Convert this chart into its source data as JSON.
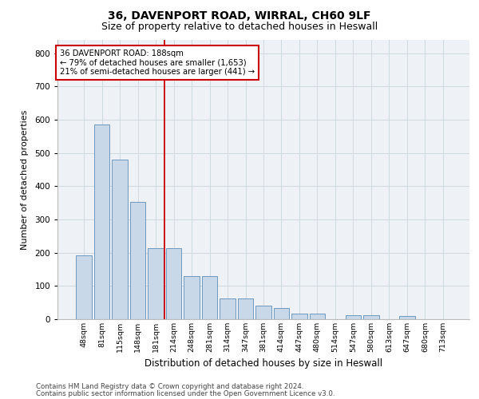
{
  "title1": "36, DAVENPORT ROAD, WIRRAL, CH60 9LF",
  "title2": "Size of property relative to detached houses in Heswall",
  "xlabel": "Distribution of detached houses by size in Heswall",
  "ylabel": "Number of detached properties",
  "categories": [
    "48sqm",
    "81sqm",
    "115sqm",
    "148sqm",
    "181sqm",
    "214sqm",
    "248sqm",
    "281sqm",
    "314sqm",
    "347sqm",
    "381sqm",
    "414sqm",
    "447sqm",
    "480sqm",
    "514sqm",
    "547sqm",
    "580sqm",
    "613sqm",
    "647sqm",
    "680sqm",
    "713sqm"
  ],
  "values": [
    192,
    585,
    480,
    352,
    214,
    214,
    130,
    130,
    62,
    62,
    40,
    33,
    18,
    18,
    0,
    12,
    12,
    0,
    9,
    0,
    0
  ],
  "bar_color": "#c8d8e8",
  "bar_edge_color": "#5b8db8",
  "annotation_text_line1": "36 DAVENPORT ROAD: 188sqm",
  "annotation_text_line2": "← 79% of detached houses are smaller (1,653)",
  "annotation_text_line3": "21% of semi-detached houses are larger (441) →",
  "annotation_box_facecolor": "#ffffff",
  "annotation_box_edgecolor": "#cc0000",
  "vline_color": "#cc0000",
  "vline_x": 4.5,
  "ylim": [
    0,
    840
  ],
  "yticks": [
    0,
    100,
    200,
    300,
    400,
    500,
    600,
    700,
    800
  ],
  "grid_color": "#d0d8e0",
  "bg_color": "#eef2f6",
  "footer1": "Contains HM Land Registry data © Crown copyright and database right 2024.",
  "footer2": "Contains public sector information licensed under the Open Government Licence v3.0.",
  "title1_fontsize": 10,
  "title2_fontsize": 9,
  "xlabel_fontsize": 8.5,
  "ylabel_fontsize": 8,
  "xtick_fontsize": 6.8,
  "ytick_fontsize": 7.5,
  "footer_fontsize": 6.2
}
